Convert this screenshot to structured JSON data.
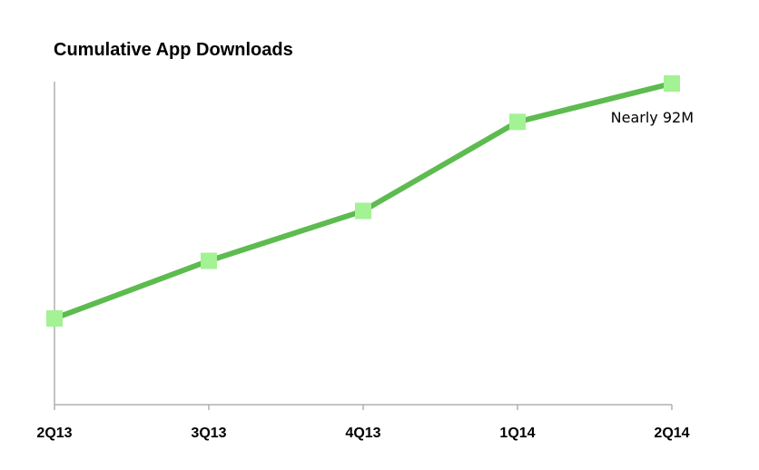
{
  "chart_data": {
    "type": "line",
    "title": "Cumulative App Downloads",
    "xlabel": "",
    "ylabel": "",
    "categories": [
      "2Q13",
      "3Q13",
      "4Q13",
      "1Q14",
      "2Q14"
    ],
    "values": [
      24.7,
      41.2,
      55.5,
      81,
      92
    ],
    "ylim": [
      0,
      92
    ],
    "grid": false,
    "y_tick_labels_shown": false,
    "annotations": [
      {
        "category": "2Q14",
        "text": "Nearly 92M"
      }
    ],
    "colors": {
      "line": "#5dbb4f",
      "marker": "#a3f294",
      "axis": "#b0b0b0"
    }
  }
}
